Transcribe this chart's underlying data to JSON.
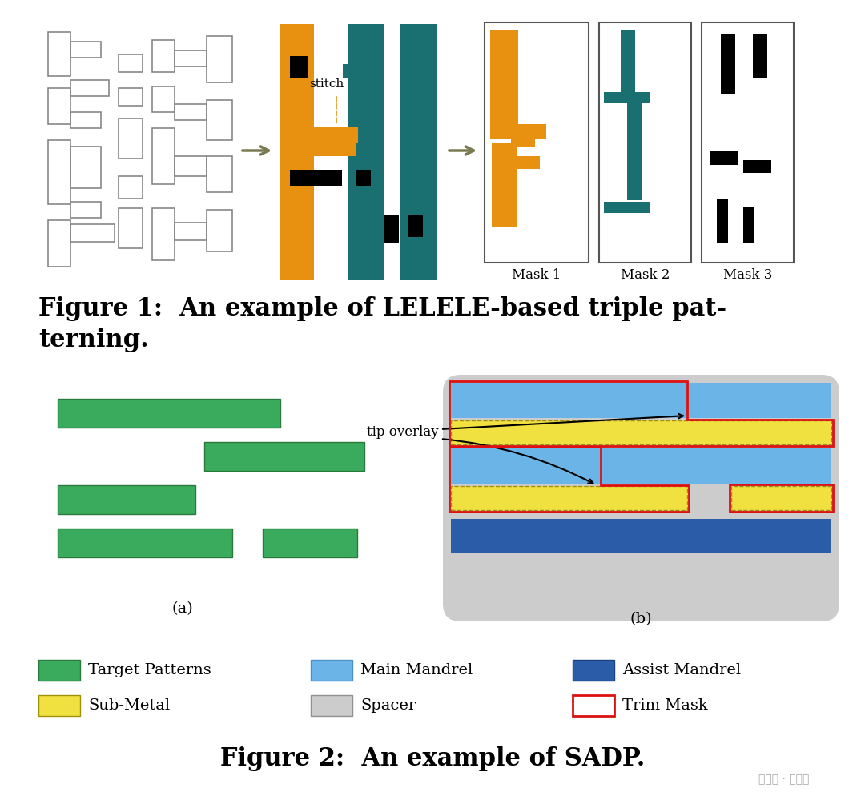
{
  "fig_width": 10.8,
  "fig_height": 9.89,
  "bg_color": "#ffffff",
  "fig1_caption": "Figure 1:  An example of LELELE-based triple pat-\nterning.",
  "fig2_caption": "Figure 2:  An example of SADP.",
  "label_a": "(a)",
  "label_b": "(b)",
  "tip_overlay_text": "tip overlay",
  "stitch_text": "stitch",
  "mask1_text": "Mask 1",
  "mask2_text": "Mask 2",
  "mask3_text": "Mask 3",
  "green_color": "#3aaa5c",
  "green_ec": "#2a7a3c",
  "light_blue_color": "#6ab4e8",
  "dark_blue_color": "#2b5ca8",
  "yellow_color": "#f0e040",
  "gray_bg_color": "#cccccc",
  "red_color": "#dd1111",
  "orange_color": "#e89010",
  "teal_color": "#1a7070",
  "black_color": "#000000",
  "outline_color": "#888888",
  "arrow_color": "#7a7a50",
  "watermark": "公众号 · 新智元"
}
